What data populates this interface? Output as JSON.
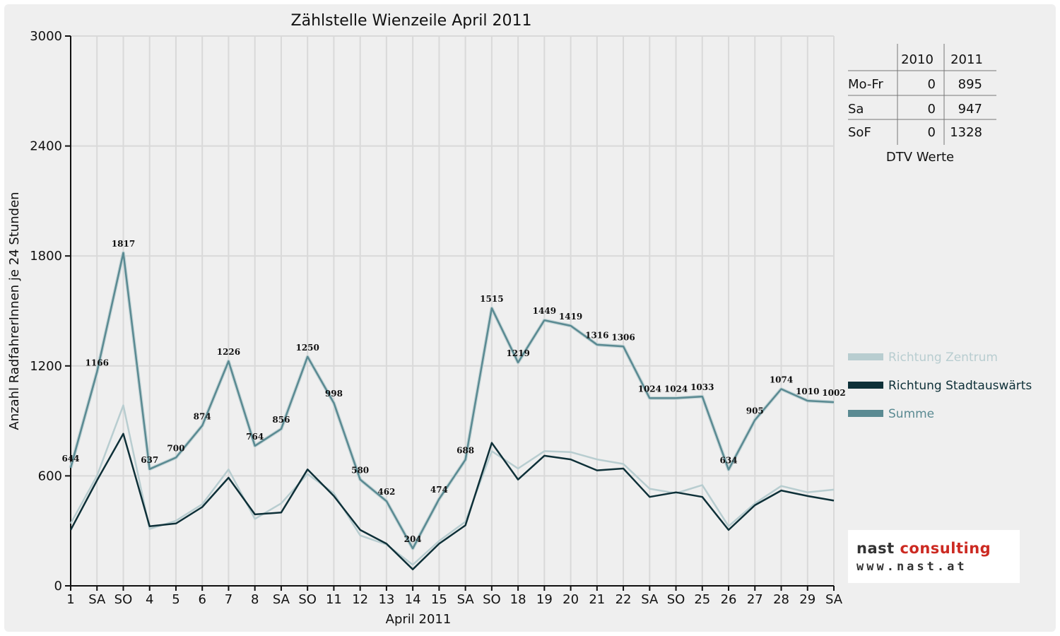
{
  "chart_data": {
    "type": "line",
    "title": "Zählstelle Wienzeile April 2011",
    "xlabel": "April 2011",
    "ylabel": "Anzahl RadfahrerInnen je 24 Stunden",
    "ylim": [
      0,
      3000
    ],
    "yticks": [
      0,
      600,
      1200,
      1800,
      2400,
      3000
    ],
    "grid": true,
    "categories": [
      "1",
      "SA",
      "SO",
      "4",
      "5",
      "6",
      "7",
      "8",
      "SA",
      "SO",
      "11",
      "12",
      "13",
      "14",
      "15",
      "SA",
      "SO",
      "18",
      "19",
      "20",
      "21",
      "22",
      "SA",
      "SO",
      "25",
      "26",
      "27",
      "28",
      "29",
      "SA"
    ],
    "category_colors": [
      "#111111",
      "#111111",
      "#e00000",
      "#111111",
      "#111111",
      "#111111",
      "#111111",
      "#111111",
      "#111111",
      "#e00000",
      "#111111",
      "#111111",
      "#111111",
      "#111111",
      "#111111",
      "#111111",
      "#e00000",
      "#111111",
      "#111111",
      "#111111",
      "#111111",
      "#111111",
      "#111111",
      "#e00000",
      "#e00000",
      "#111111",
      "#111111",
      "#111111",
      "#111111",
      "#111111"
    ],
    "series": [
      {
        "name": "Richtung Zentrum",
        "color": "#b8cdd0",
        "values": [
          340,
          600,
          985,
          310,
          355,
          445,
          635,
          365,
          450,
          610,
          505,
          275,
          225,
          115,
          245,
          350,
          735,
          640,
          735,
          730,
          690,
          665,
          530,
          505,
          550,
          325,
          450,
          545,
          510,
          525
        ]
      },
      {
        "name": "Richtung Stadtauswärts",
        "color": "#0e3038",
        "values": [
          305,
          575,
          830,
          325,
          340,
          430,
          590,
          390,
          400,
          635,
          490,
          305,
          230,
          90,
          230,
          330,
          780,
          580,
          710,
          690,
          630,
          640,
          485,
          510,
          485,
          305,
          440,
          520,
          490,
          465
        ]
      },
      {
        "name": "Summe",
        "color": "#5a8a92",
        "values": [
          644,
          1166,
          1817,
          637,
          700,
          874,
          1226,
          764,
          856,
          1250,
          998,
          580,
          462,
          204,
          474,
          688,
          1515,
          1219,
          1449,
          1419,
          1316,
          1306,
          1024,
          1024,
          1033,
          634,
          905,
          1074,
          1010,
          1002
        ],
        "data_labels": [
          "644",
          "1166",
          "1817",
          "637",
          "700",
          "874",
          "1226",
          "764",
          "856",
          "1250",
          "998",
          "580",
          "462",
          "204",
          "474",
          "688",
          "1515",
          "1219",
          "1449",
          "1419",
          "1316",
          "1306",
          "1024",
          "1024",
          "1033",
          "634",
          "905",
          "1074",
          "1010",
          "1002"
        ]
      }
    ],
    "legend_position": "right",
    "dtv_table": {
      "caption": "DTV Werte",
      "columns": [
        "2010",
        "2011"
      ],
      "rows": [
        {
          "label": "Mo-Fr",
          "values": [
            "0",
            "895"
          ]
        },
        {
          "label": "Sa",
          "values": [
            "0",
            "947"
          ]
        },
        {
          "label": "SoF",
          "values": [
            "0",
            "1328"
          ]
        }
      ]
    }
  },
  "logo": {
    "line1_dark": "nast",
    "line1_red": "consulting",
    "line2": "www.nast.at"
  }
}
